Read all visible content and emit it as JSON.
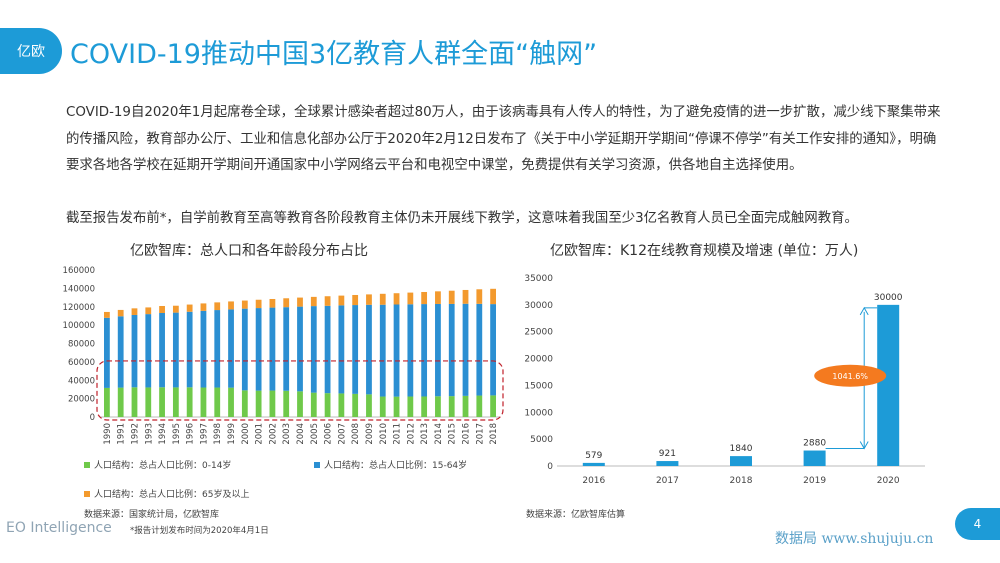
{
  "header": {
    "logo_text": "亿欧",
    "title": "COVID-19推动中国3亿教育人群全面“触网”"
  },
  "intro": {
    "p1": "COVID-19自2020年1月起席卷全球，全球累计感染者超过80万人，由于该病毒具有人传人的特性，为了避免疫情的进一步扩散，减少线下聚集带来的传播风险，教育部办公厅、工业和信息化部办公厅于2020年2月12日发布了《关于中小学延期开学期间“停课不停学”有关工作安排的通知》，明确要求各地各学校在延期开学期间开通国家中小学网络云平台和电视空中课堂，免费提供有关学习资源，供各地自主选择使用。",
    "p2": "截至报告发布前*，自学前教育至高等教育各阶段教育主体仍未开展线下教学，这意味着我国至少3亿名教育人员已全面完成触网教育。"
  },
  "colors": {
    "accent": "#1d9bd7",
    "green": "#6fc94a",
    "blue": "#2b8fd2",
    "orange": "#f39a2e",
    "dash": "#c0202a",
    "annotation": "#f47a1f"
  },
  "chart_data": [
    {
      "type": "bar",
      "stacked": true,
      "title": "亿欧智库：总人口和各年龄段分布占比",
      "categories": [
        "1990",
        "1991",
        "1992",
        "1993",
        "1994",
        "1995",
        "1996",
        "1997",
        "1998",
        "1999",
        "2000",
        "2001",
        "2002",
        "2003",
        "2004",
        "2005",
        "2006",
        "2007",
        "2008",
        "2009",
        "2010",
        "2011",
        "2012",
        "2013",
        "2014",
        "2015",
        "2016",
        "2017",
        "2018"
      ],
      "series": [
        {
          "name": "人口结构：总占人口比例：0-14岁",
          "values": [
            31659,
            31989,
            32339,
            32177,
            32360,
            32218,
            32311,
            32093,
            32064,
            31950,
            29012,
            28716,
            28774,
            28559,
            27947,
            26504,
            25961,
            25660,
            25166,
            24659,
            22259,
            22164,
            22287,
            22329,
            22558,
            22715,
            23008,
            23348,
            23523
          ]
        },
        {
          "name": "人口结构：总占人口比例：15-64岁",
          "values": [
            76306,
            77614,
            78706,
            79804,
            80838,
            81393,
            82245,
            83448,
            84338,
            85157,
            88910,
            89849,
            90302,
            90976,
            92184,
            94197,
            95068,
            95833,
            96680,
            97484,
            99938,
            100283,
            100403,
            100582,
            100469,
            100361,
            100260,
            99829,
            99357
          ]
        },
        {
          "name": "人口结构：总占人口比例：65岁及以上",
          "values": [
            6368,
            6938,
            7218,
            7289,
            7622,
            7510,
            7833,
            8085,
            8359,
            8679,
            8821,
            9062,
            9377,
            9692,
            9857,
            10055,
            10419,
            10636,
            10956,
            11307,
            11894,
            12288,
            12714,
            13161,
            13755,
            14386,
            15003,
            15831,
            16658
          ]
        }
      ],
      "ylim": [
        0,
        160000
      ],
      "yticks": [
        "0",
        "20000",
        "40000",
        "60000",
        "80000",
        "100000",
        "120000",
        "140000",
        "160000"
      ],
      "legend_position": "bottom",
      "source": "数据来源：国家统计局，亿欧智库"
    },
    {
      "type": "bar",
      "title": "亿欧智库：K12在线教育规模及增速 (单位：万人)",
      "categories": [
        "2016",
        "2017",
        "2018",
        "2019",
        "2020"
      ],
      "values": [
        579,
        921,
        1840,
        2880,
        30000
      ],
      "labels": [
        "579",
        "921",
        "1840",
        "2880",
        "30000"
      ],
      "ylim": [
        0,
        35000
      ],
      "yticks": [
        "0",
        "5000",
        "10000",
        "15000",
        "20000",
        "25000",
        "30000",
        "35000"
      ],
      "annotation": "1041.6%",
      "source": "数据来源：亿欧智库估算"
    }
  ],
  "footer": {
    "brand": "EO Intelligence",
    "note": "*报告计划发布时间为2020年4月1日",
    "page": "4",
    "watermark": "数据局 www.shujuju.cn"
  }
}
